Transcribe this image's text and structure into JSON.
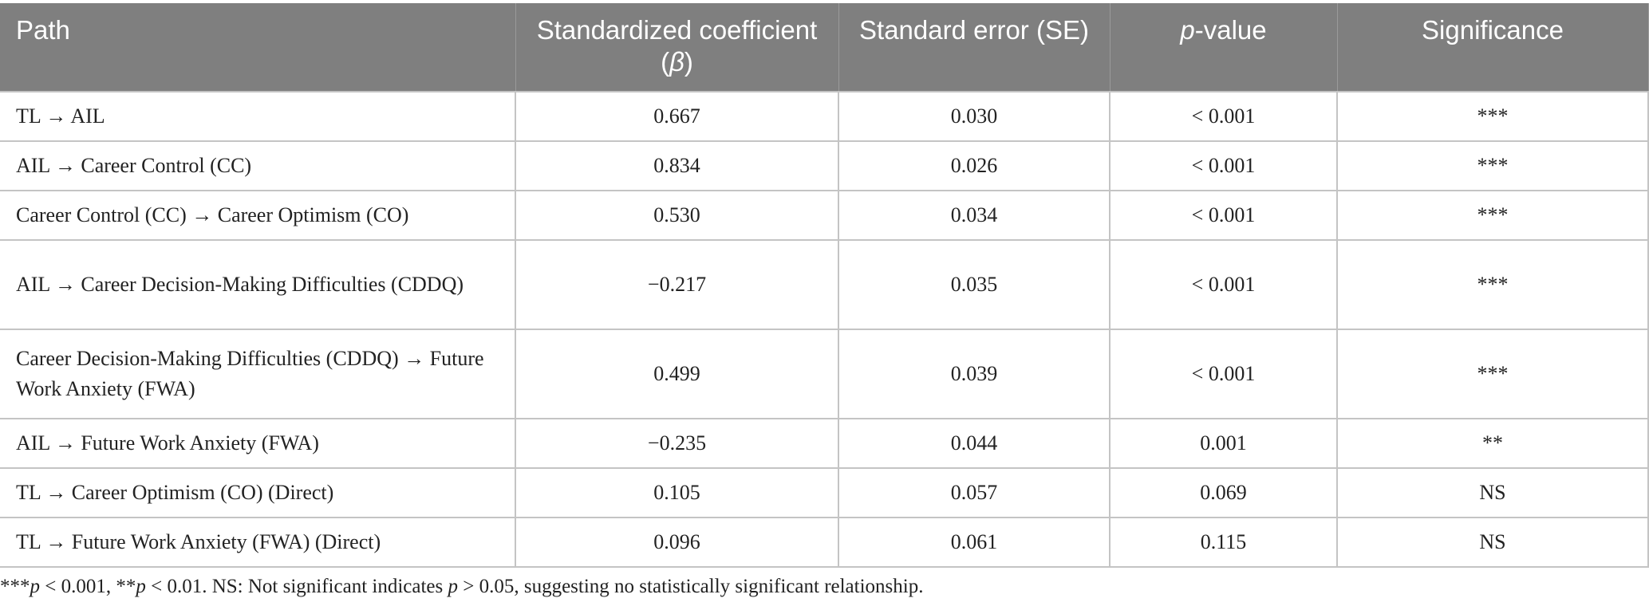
{
  "table": {
    "headers": {
      "path": "Path",
      "beta": "Standardized coefficient (",
      "beta_symbol": "β",
      "beta_close": ")",
      "se": "Standard error (SE)",
      "p_italic": "p",
      "p_rest": "-value",
      "sig": "Significance"
    },
    "rows": [
      {
        "path": "TL → AIL",
        "beta": "0.667",
        "se": "0.030",
        "p": "< 0.001",
        "sig": "***"
      },
      {
        "path": "AIL → Career Control (CC)",
        "beta": "0.834",
        "se": "0.026",
        "p": "< 0.001",
        "sig": "***"
      },
      {
        "path": "Career Control (CC) → Career Optimism (CO)",
        "beta": "0.530",
        "se": "0.034",
        "p": "< 0.001",
        "sig": "***"
      },
      {
        "path": "AIL → Career Decision-Making Difficulties (CDDQ)",
        "beta": "−0.217",
        "se": "0.035",
        "p": "< 0.001",
        "sig": "***"
      },
      {
        "path": "Career Decision-Making Difficulties (CDDQ) → Future Work Anxiety (FWA)",
        "beta": "0.499",
        "se": "0.039",
        "p": "< 0.001",
        "sig": "***"
      },
      {
        "path": "AIL → Future Work Anxiety (FWA)",
        "beta": "−0.235",
        "se": "0.044",
        "p": "0.001",
        "sig": "**"
      },
      {
        "path": "TL → Career Optimism (CO) (Direct)",
        "beta": "0.105",
        "se": "0.057",
        "p": "0.069",
        "sig": "NS"
      },
      {
        "path": "TL → Future Work Anxiety (FWA) (Direct)",
        "beta": "0.096",
        "se": "0.061",
        "p": "0.115",
        "sig": "NS"
      }
    ]
  },
  "footnote": {
    "a": "***",
    "p1": "p",
    "b": " < 0.001, **",
    "p2": "p",
    "c": " < 0.01. NS: Not significant indicates ",
    "p3": "p",
    "d": " > 0.05, suggesting no statistically significant relationship."
  },
  "colors": {
    "header_bg": "#7f7f7f",
    "header_text": "#ffffff",
    "border": "#c4c4c4"
  }
}
